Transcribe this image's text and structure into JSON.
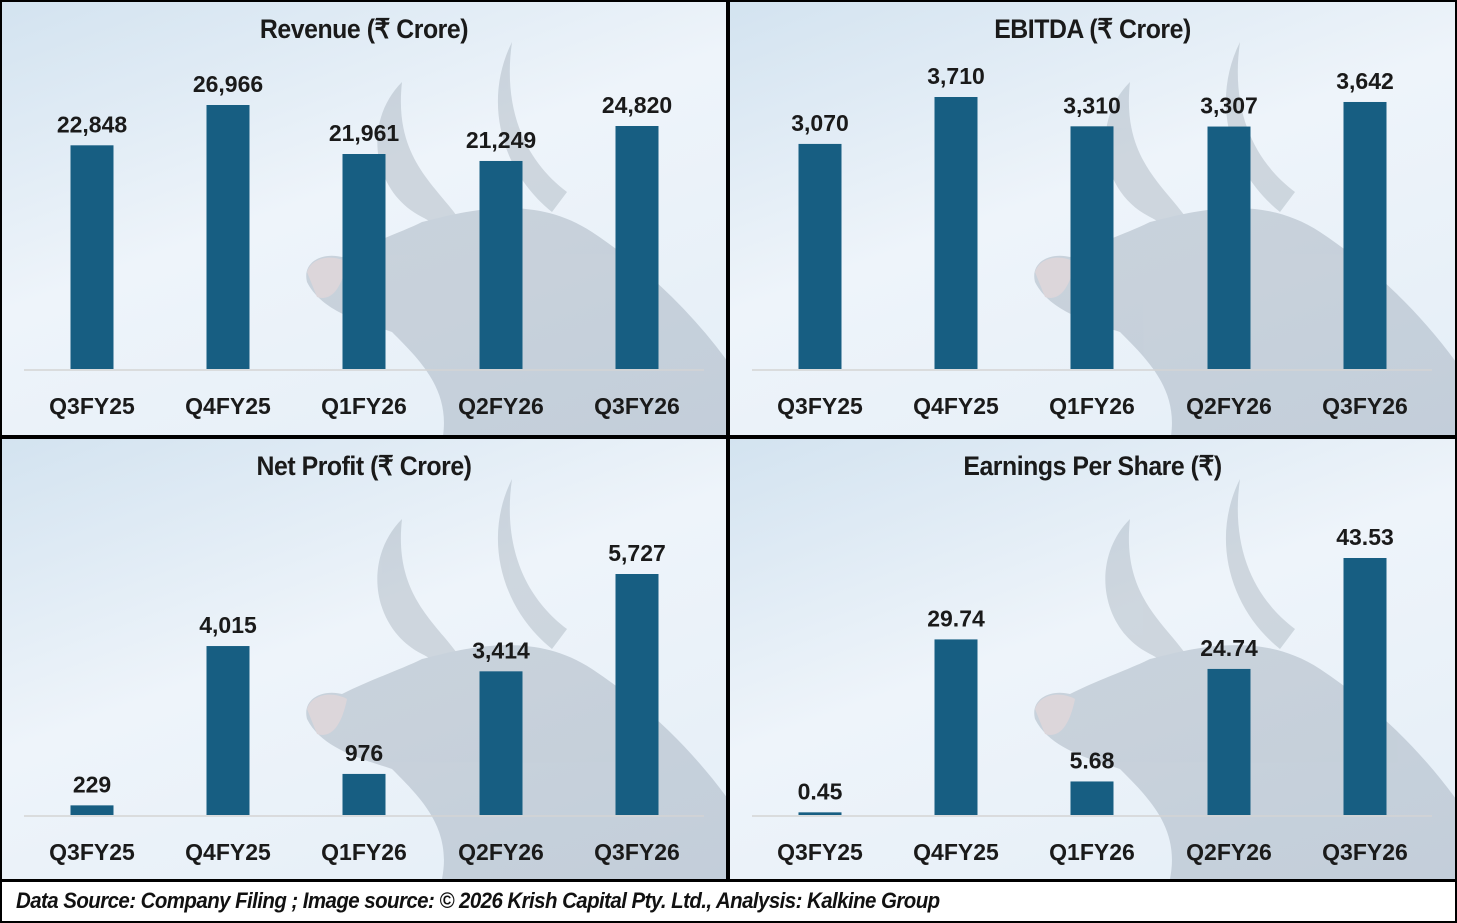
{
  "colors": {
    "bar": "#175e82",
    "axis": "#d4d4d4",
    "watermark": "#8a99ab"
  },
  "footer": "Data Source: Company Filing ; Image source: © 2026 Krish Capital Pty. Ltd., Analysis: Kalkine Group",
  "chart_data": [
    {
      "type": "bar",
      "title": "Revenue (₹ Crore)",
      "categories": [
        "Q3FY25",
        "Q4FY25",
        "Q1FY26",
        "Q2FY26",
        "Q3FY26"
      ],
      "values": [
        22848,
        26966,
        21961,
        21249,
        24820
      ],
      "labels": [
        "22,848",
        "26,966",
        "21,961",
        "21,249",
        "24,820"
      ],
      "xlabel": "",
      "ylabel": "",
      "ylim": [
        0,
        30000
      ],
      "grid": false,
      "legend": "none"
    },
    {
      "type": "bar",
      "title": "EBITDA (₹ Crore)",
      "categories": [
        "Q3FY25",
        "Q4FY25",
        "Q1FY26",
        "Q2FY26",
        "Q3FY26"
      ],
      "values": [
        3070,
        3710,
        3310,
        3307,
        3642
      ],
      "labels": [
        "3,070",
        "3,710",
        "3,310",
        "3,307",
        "3,642"
      ],
      "xlabel": "",
      "ylabel": "",
      "ylim": [
        0,
        4000
      ],
      "grid": false,
      "legend": "none"
    },
    {
      "type": "bar",
      "title": "Net Profit  (₹ Crore)",
      "categories": [
        "Q3FY25",
        "Q4FY25",
        "Q1FY26",
        "Q2FY26",
        "Q3FY26"
      ],
      "values": [
        229,
        4015,
        976,
        3414,
        5727
      ],
      "labels": [
        "229",
        "4,015",
        "976",
        "3,414",
        "5,727"
      ],
      "xlabel": "",
      "ylabel": "",
      "ylim": [
        0,
        6500
      ],
      "grid": false,
      "legend": "none"
    },
    {
      "type": "bar",
      "title": "Earnings Per Share (₹)",
      "categories": [
        "Q3FY25",
        "Q4FY25",
        "Q1FY26",
        "Q2FY26",
        "Q3FY26"
      ],
      "values": [
        0.45,
        29.74,
        5.68,
        24.74,
        43.53
      ],
      "labels": [
        "0.45",
        "29.74",
        "5.68",
        "24.74",
        "43.53"
      ],
      "xlabel": "",
      "ylabel": "",
      "ylim": [
        0,
        48
      ],
      "grid": false,
      "legend": "none"
    }
  ]
}
